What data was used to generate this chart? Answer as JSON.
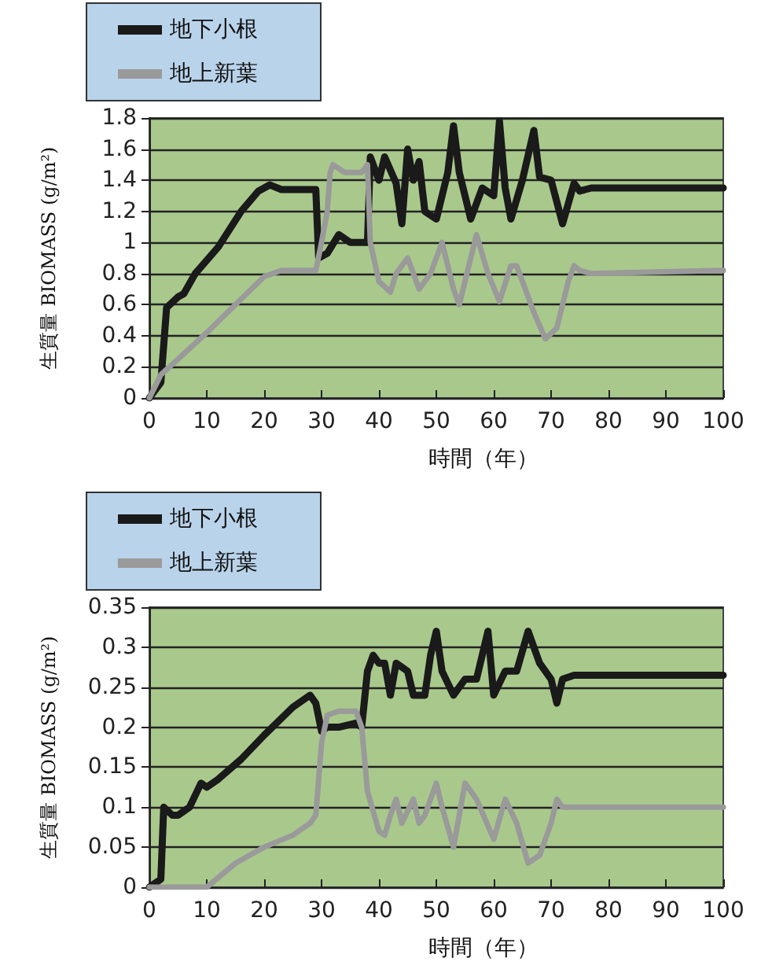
{
  "chart_data": [
    {
      "type": "line",
      "xlabel": "時間（年）",
      "ylabel": "生質量 BIOMASS (g/m²)",
      "xlim": [
        0,
        100
      ],
      "xticks": [
        0,
        10,
        20,
        30,
        40,
        50,
        60,
        70,
        80,
        90,
        100
      ],
      "ylim": [
        0,
        1.8
      ],
      "yticks": [
        0,
        0.2,
        0.4,
        0.6,
        0.8,
        1,
        1.2,
        1.4,
        1.6,
        1.8
      ],
      "grid": "y",
      "legend": "top left",
      "marker": "none",
      "line_style": "solid",
      "series": [
        {
          "name": "地下小根",
          "color": "#1a1a1a",
          "x": [
            0,
            2,
            3,
            5,
            6,
            8,
            12,
            16,
            19,
            21,
            23,
            29,
            29.5,
            31,
            33,
            35,
            38,
            38.5,
            40,
            41,
            43,
            44,
            45,
            46,
            47,
            48,
            50,
            52,
            53,
            54,
            56,
            58,
            60,
            61,
            62,
            63,
            65,
            67,
            68,
            70,
            72,
            74,
            75,
            77,
            100
          ],
          "values": [
            0,
            0.1,
            0.58,
            0.65,
            0.67,
            0.8,
            0.97,
            1.2,
            1.33,
            1.37,
            1.34,
            1.34,
            0.9,
            0.93,
            1.05,
            1,
            1,
            1.55,
            1.4,
            1.55,
            1.38,
            1.12,
            1.6,
            1.4,
            1.52,
            1.2,
            1.15,
            1.45,
            1.75,
            1.45,
            1.15,
            1.35,
            1.3,
            1.78,
            1.35,
            1.15,
            1.4,
            1.72,
            1.42,
            1.4,
            1.12,
            1.38,
            1.33,
            1.35,
            1.35
          ]
        },
        {
          "name": "地上新葉",
          "color": "#9a9a9a",
          "x": [
            0,
            2,
            5,
            10,
            15,
            20,
            23,
            29,
            30,
            31,
            31.5,
            32,
            34,
            37,
            38,
            38.5,
            40,
            42,
            43,
            45,
            47,
            49,
            51,
            53,
            54,
            57,
            59,
            61,
            63,
            64,
            67,
            69,
            71,
            73,
            74,
            75,
            77,
            100
          ],
          "values": [
            0,
            0.15,
            0.25,
            0.42,
            0.6,
            0.78,
            0.82,
            0.82,
            1,
            1.2,
            1.45,
            1.5,
            1.45,
            1.45,
            1.5,
            1,
            0.75,
            0.68,
            0.8,
            0.9,
            0.7,
            0.8,
            1,
            0.7,
            0.6,
            1.05,
            0.8,
            0.62,
            0.85,
            0.85,
            0.55,
            0.38,
            0.45,
            0.75,
            0.85,
            0.82,
            0.8,
            0.82
          ]
        }
      ]
    },
    {
      "type": "line",
      "xlabel": "時間（年）",
      "ylabel": "生質量 BIOMASS (g/m²)",
      "xlim": [
        0,
        100
      ],
      "xticks": [
        0,
        10,
        20,
        30,
        40,
        50,
        60,
        70,
        80,
        90,
        100
      ],
      "ylim": [
        0,
        0.35
      ],
      "yticks": [
        0,
        0.05,
        0.1,
        0.15,
        0.2,
        0.25,
        0.3,
        0.35
      ],
      "grid": "y",
      "legend": "top left",
      "marker": "none",
      "line_style": "solid",
      "series": [
        {
          "name": "地下小根",
          "color": "#1a1a1a",
          "x": [
            0,
            2,
            2.5,
            4,
            5,
            7,
            9,
            10,
            12,
            16,
            20,
            25,
            28,
            29,
            30,
            31,
            33,
            36,
            37,
            38,
            39,
            40,
            41,
            42,
            43,
            45,
            46,
            48,
            49,
            50,
            51,
            53,
            55,
            57,
            59,
            60,
            62,
            64,
            66,
            68,
            70,
            71,
            72,
            74,
            100
          ],
          "values": [
            0,
            0.01,
            0.1,
            0.09,
            0.09,
            0.1,
            0.13,
            0.125,
            0.135,
            0.16,
            0.19,
            0.225,
            0.24,
            0.23,
            0.195,
            0.2,
            0.2,
            0.205,
            0.2,
            0.27,
            0.29,
            0.28,
            0.28,
            0.24,
            0.28,
            0.27,
            0.24,
            0.24,
            0.29,
            0.32,
            0.27,
            0.24,
            0.26,
            0.26,
            0.32,
            0.24,
            0.27,
            0.27,
            0.32,
            0.28,
            0.26,
            0.23,
            0.26,
            0.265,
            0.265
          ]
        },
        {
          "name": "地上新葉",
          "color": "#9a9a9a",
          "x": [
            0,
            10,
            15,
            20,
            25,
            28,
            29,
            30,
            31,
            33,
            36,
            37,
            38,
            40,
            41,
            42,
            43,
            44,
            46,
            47,
            48,
            50,
            51,
            53,
            55,
            57,
            60,
            62,
            64,
            66,
            68,
            70,
            71,
            72,
            100
          ],
          "values": [
            0,
            0,
            0.03,
            0.05,
            0.065,
            0.08,
            0.09,
            0.18,
            0.215,
            0.22,
            0.22,
            0.2,
            0.12,
            0.07,
            0.065,
            0.09,
            0.11,
            0.08,
            0.11,
            0.08,
            0.09,
            0.13,
            0.1,
            0.05,
            0.13,
            0.11,
            0.06,
            0.11,
            0.08,
            0.03,
            0.04,
            0.08,
            0.11,
            0.1,
            0.1
          ]
        }
      ]
    }
  ]
}
